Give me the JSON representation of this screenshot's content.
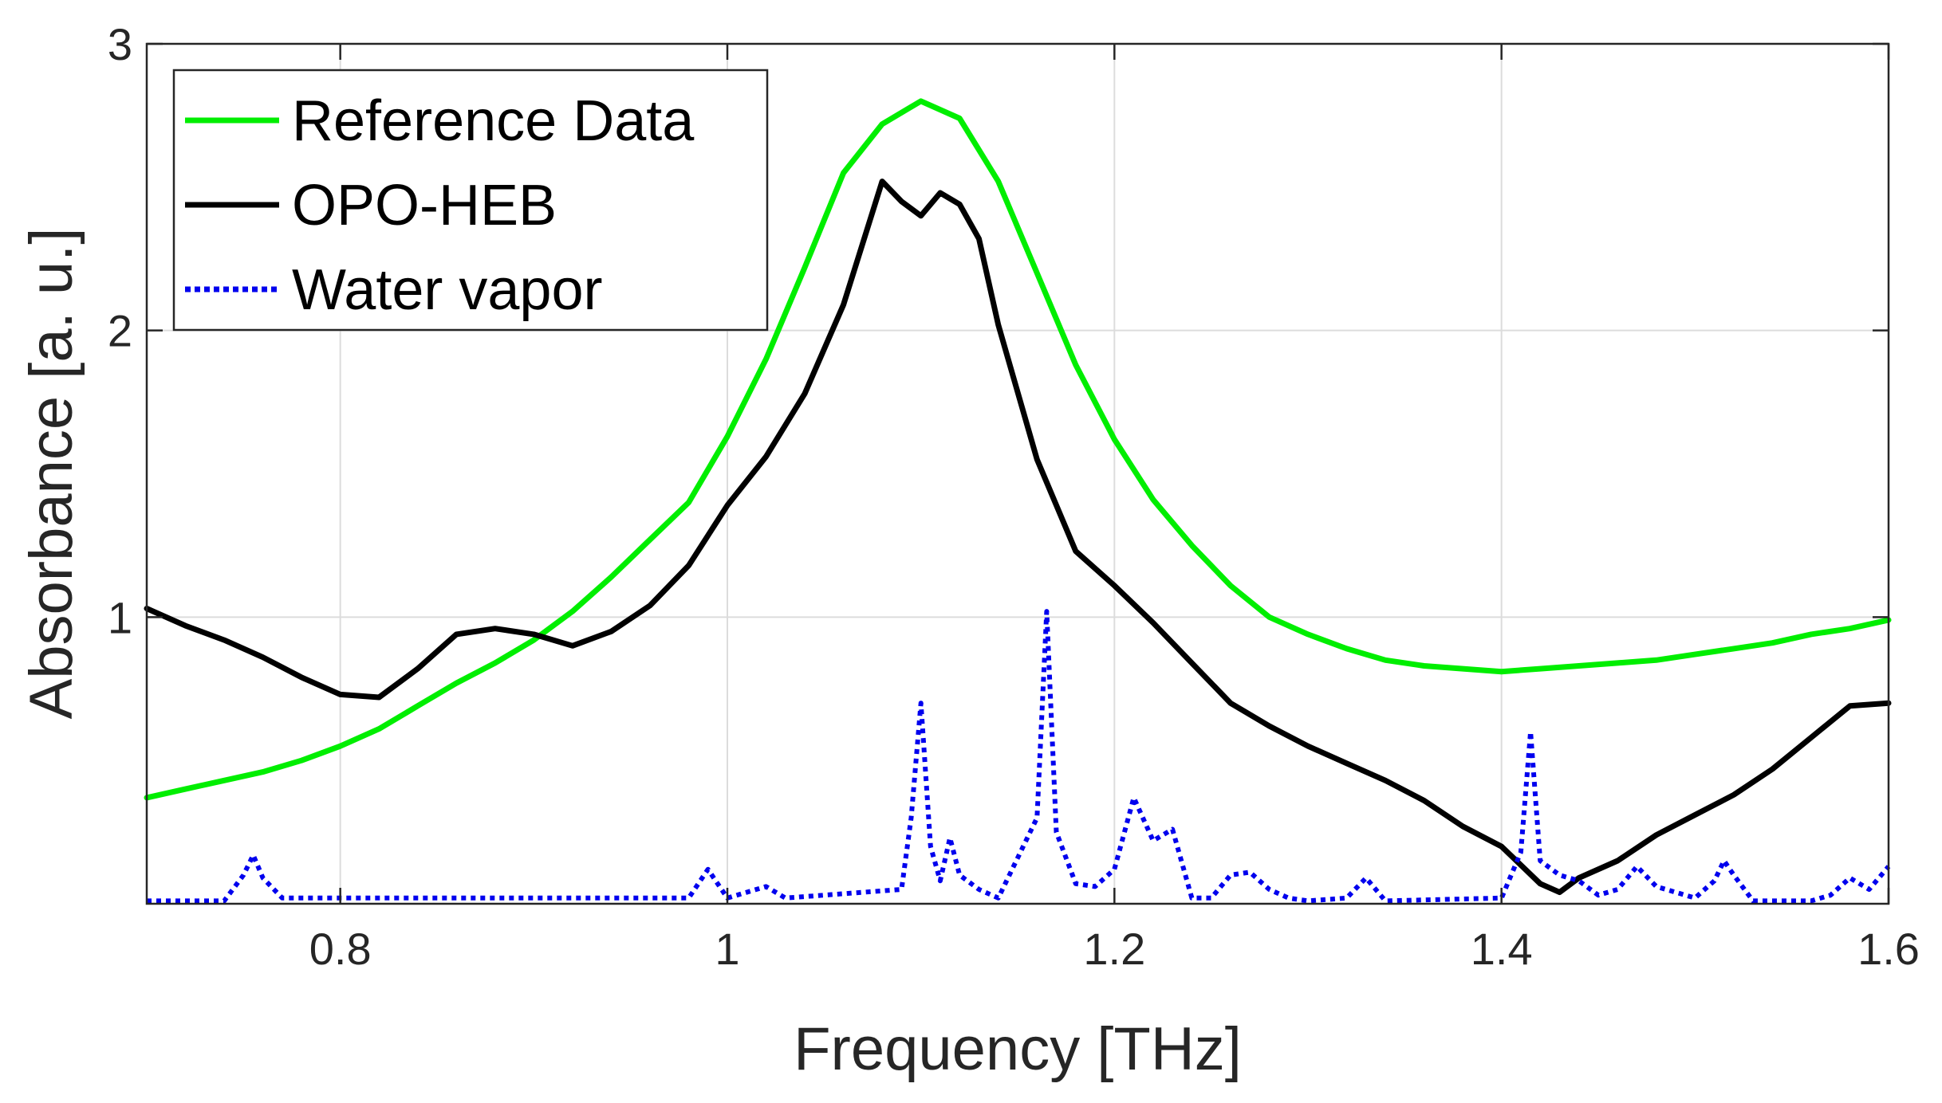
{
  "chart_data": {
    "type": "line",
    "title": "",
    "xlabel": "Frequency [THz]",
    "ylabel": "Absorbance [a. u.]",
    "xlim": [
      0.7,
      1.6
    ],
    "ylim": [
      0,
      3
    ],
    "xticks": [
      0.8,
      1.0,
      1.2,
      1.4,
      1.6
    ],
    "xtick_labels": [
      "0.8",
      "1",
      "1.2",
      "1.4",
      "1.6"
    ],
    "yticks": [
      1,
      2,
      3
    ],
    "ytick_labels": [
      "1",
      "2",
      "3"
    ],
    "grid": true,
    "legend_position": "top-left",
    "colors": {
      "reference": "#00ee00",
      "opo": "#000000",
      "water": "#0000ee"
    },
    "series": [
      {
        "name": "Reference Data",
        "style": "solid",
        "x": [
          0.7,
          0.72,
          0.74,
          0.76,
          0.78,
          0.8,
          0.82,
          0.84,
          0.86,
          0.88,
          0.9,
          0.92,
          0.94,
          0.96,
          0.98,
          1.0,
          1.02,
          1.04,
          1.06,
          1.08,
          1.1,
          1.12,
          1.14,
          1.16,
          1.18,
          1.2,
          1.22,
          1.24,
          1.26,
          1.28,
          1.3,
          1.32,
          1.34,
          1.36,
          1.38,
          1.4,
          1.42,
          1.44,
          1.46,
          1.48,
          1.5,
          1.52,
          1.54,
          1.56,
          1.58,
          1.6
        ],
        "values": [
          0.37,
          0.4,
          0.43,
          0.46,
          0.5,
          0.55,
          0.61,
          0.69,
          0.77,
          0.84,
          0.92,
          1.02,
          1.14,
          1.27,
          1.4,
          1.63,
          1.9,
          2.22,
          2.55,
          2.72,
          2.8,
          2.74,
          2.52,
          2.2,
          1.88,
          1.62,
          1.41,
          1.25,
          1.11,
          1.0,
          0.94,
          0.89,
          0.85,
          0.83,
          0.82,
          0.81,
          0.82,
          0.83,
          0.84,
          0.85,
          0.87,
          0.89,
          0.91,
          0.94,
          0.96,
          0.99
        ]
      },
      {
        "name": "OPO-HEB",
        "style": "solid",
        "x": [
          0.7,
          0.72,
          0.74,
          0.76,
          0.78,
          0.8,
          0.82,
          0.84,
          0.86,
          0.88,
          0.9,
          0.92,
          0.94,
          0.96,
          0.98,
          1.0,
          1.02,
          1.04,
          1.06,
          1.08,
          1.09,
          1.1,
          1.11,
          1.12,
          1.13,
          1.14,
          1.16,
          1.18,
          1.2,
          1.22,
          1.24,
          1.26,
          1.28,
          1.3,
          1.32,
          1.34,
          1.36,
          1.38,
          1.4,
          1.42,
          1.43,
          1.44,
          1.46,
          1.48,
          1.5,
          1.52,
          1.54,
          1.56,
          1.58,
          1.6
        ],
        "values": [
          1.03,
          0.97,
          0.92,
          0.86,
          0.79,
          0.73,
          0.72,
          0.82,
          0.94,
          0.96,
          0.94,
          0.9,
          0.95,
          1.04,
          1.18,
          1.39,
          1.56,
          1.78,
          2.09,
          2.52,
          2.45,
          2.4,
          2.48,
          2.44,
          2.32,
          2.02,
          1.55,
          1.23,
          1.11,
          0.98,
          0.84,
          0.7,
          0.62,
          0.55,
          0.49,
          0.43,
          0.36,
          0.27,
          0.2,
          0.07,
          0.04,
          0.09,
          0.15,
          0.24,
          0.31,
          0.38,
          0.47,
          0.58,
          0.69,
          0.7
        ]
      },
      {
        "name": "Water vapor",
        "style": "dotted",
        "x": [
          0.7,
          0.74,
          0.75,
          0.755,
          0.76,
          0.77,
          0.98,
          0.99,
          1.0,
          1.02,
          1.03,
          1.09,
          1.095,
          1.1,
          1.105,
          1.11,
          1.115,
          1.12,
          1.13,
          1.14,
          1.15,
          1.16,
          1.165,
          1.17,
          1.18,
          1.19,
          1.2,
          1.21,
          1.22,
          1.23,
          1.24,
          1.25,
          1.26,
          1.27,
          1.28,
          1.29,
          1.3,
          1.32,
          1.33,
          1.34,
          1.4,
          1.41,
          1.415,
          1.42,
          1.43,
          1.44,
          1.45,
          1.46,
          1.47,
          1.48,
          1.5,
          1.51,
          1.515,
          1.52,
          1.53,
          1.56,
          1.57,
          1.58,
          1.59,
          1.6
        ],
        "values": [
          0.01,
          0.01,
          0.1,
          0.17,
          0.09,
          0.02,
          0.02,
          0.12,
          0.02,
          0.06,
          0.02,
          0.05,
          0.3,
          0.7,
          0.2,
          0.08,
          0.23,
          0.1,
          0.05,
          0.02,
          0.16,
          0.3,
          1.02,
          0.25,
          0.07,
          0.06,
          0.12,
          0.37,
          0.22,
          0.26,
          0.02,
          0.02,
          0.1,
          0.11,
          0.05,
          0.02,
          0.01,
          0.02,
          0.09,
          0.01,
          0.02,
          0.18,
          0.6,
          0.15,
          0.1,
          0.08,
          0.03,
          0.05,
          0.13,
          0.06,
          0.02,
          0.08,
          0.15,
          0.1,
          0.01,
          0.01,
          0.03,
          0.09,
          0.05,
          0.13
        ]
      }
    ]
  }
}
